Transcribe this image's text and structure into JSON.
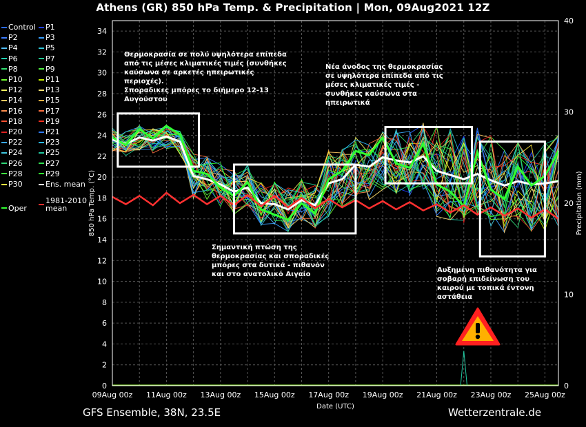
{
  "title": "Athens  (GR)  850 hPa Temp. & Precipitation | Mon, 09Aug2021 12Z",
  "footer": {
    "left": "GFS Ensemble, 38N, 23.5E",
    "right": "Wetterzentrale.de"
  },
  "legend": [
    {
      "label": "Control",
      "color": "#2c6bff"
    },
    {
      "label": "P1",
      "color": "#2040ff"
    },
    {
      "label": "P2",
      "color": "#3d7dff"
    },
    {
      "label": "P3",
      "color": "#3aa0ff"
    },
    {
      "label": "P4",
      "color": "#52c0ff"
    },
    {
      "label": "P5",
      "color": "#30c8d8"
    },
    {
      "label": "P6",
      "color": "#20d0b0"
    },
    {
      "label": "P7",
      "color": "#20c890"
    },
    {
      "label": "P8",
      "color": "#30e070"
    },
    {
      "label": "P9",
      "color": "#50f040"
    },
    {
      "label": "P10",
      "color": "#70ff30"
    },
    {
      "label": "P11",
      "color": "#c8f000"
    },
    {
      "label": "P12",
      "color": "#f0f060"
    },
    {
      "label": "P13",
      "color": "#ffe070"
    },
    {
      "label": "P14",
      "color": "#ffc860"
    },
    {
      "label": "P15",
      "color": "#ffb040"
    },
    {
      "label": "P16",
      "color": "#ff9050"
    },
    {
      "label": "P17",
      "color": "#ff7040"
    },
    {
      "label": "P18",
      "color": "#ff5030"
    },
    {
      "label": "P19",
      "color": "#ff3020"
    },
    {
      "label": "P20",
      "color": "#e02020"
    },
    {
      "label": "P21",
      "color": "#2e7bff"
    },
    {
      "label": "P22",
      "color": "#3aa8ff"
    },
    {
      "label": "P23",
      "color": "#2ab8ff"
    },
    {
      "label": "P24",
      "color": "#40c8e0"
    },
    {
      "label": "P25",
      "color": "#20c8a0"
    },
    {
      "label": "P26",
      "color": "#30d878"
    },
    {
      "label": "P27",
      "color": "#30e050"
    },
    {
      "label": "P28",
      "color": "#40f040"
    },
    {
      "label": "P29",
      "color": "#30ff30"
    },
    {
      "label": "P30",
      "color": "#ffe840"
    },
    {
      "label": "Ens. mean",
      "color": "#ffffff"
    },
    {
      "label": "Oper",
      "color": "#30ff30"
    },
    {
      "label": "1981-2010\nmean",
      "color": "#ff3030"
    }
  ],
  "annotations": [
    {
      "text": "Θερμοκρασία σε πολύ υψηλότερα επίπεδα\nαπό τις μέσες κλιματικές τιμές (συνθήκες\nκαύσωνα σε αρκετές ηπειρωτικές\nπεριοχές).\nΣποραδικες μπόρες το διήμερο 12-13\nΑυγούστου"
    },
    {
      "text": "Σημαντική πτώση της\nθερμοκρασίας και σποραδικές\nμπόρες στα δυτικά - πιθανόν\nκαι στο ανατολικό Αιγαίο"
    },
    {
      "text": "Νέα άνοδος της θερμοκρασίας\nσε υψηλότερα επίπεδα από τις\nμέσες κλιματικές τιμές -\nσυνθήκες καύσωνα στα\nηπειρωτικά"
    },
    {
      "text": "Αυξημένη πιθανότητα για\nσοβαρή επιδείνωση του\nκαιρού με τοπικά έντονη\nαστάθεια"
    }
  ],
  "chart_data": {
    "type": "line",
    "xlabel": "Date (UTC)",
    "ylabel": "850 hPa Temp. (°C)",
    "ylabel_right": "Precipitation (mm)",
    "ylim": [
      0,
      35
    ],
    "ylim_right": [
      0,
      40
    ],
    "x_range": [
      "09Aug 00z",
      "25Aug 12z"
    ],
    "x_tick_labels": [
      "09Aug 00z",
      "11Aug 00z",
      "13Aug 00z",
      "15Aug 00z",
      "17Aug 00z",
      "19Aug 00z",
      "21Aug 00z",
      "23Aug 00z",
      "25Aug 00z"
    ],
    "y_ticks": [
      0,
      2,
      4,
      6,
      8,
      10,
      12,
      14,
      16,
      18,
      20,
      22,
      24,
      26,
      28,
      30,
      32,
      34
    ],
    "y_right_ticks": [
      0,
      10,
      20,
      30,
      40
    ],
    "grid": true,
    "x_days": [
      0,
      0.5,
      1,
      1.5,
      2,
      2.5,
      3,
      3.5,
      4,
      4.5,
      5,
      5.5,
      6,
      6.5,
      7,
      7.5,
      8,
      8.5,
      9,
      9.5,
      10,
      10.5,
      11,
      11.5,
      12,
      12.5,
      13,
      13.5,
      14,
      14.5,
      15,
      15.5,
      16,
      16.5
    ],
    "series": [
      {
        "name": "Ens. mean",
        "values": [
          23.6,
          23.2,
          23.8,
          23.5,
          23.9,
          23.4,
          20.1,
          19.8,
          19.3,
          18.6,
          19.0,
          17.5,
          17.4,
          16.9,
          17.8,
          17.3,
          19.4,
          19.8,
          21.2,
          21.0,
          21.9,
          21.6,
          21.4,
          22.0,
          20.6,
          20.2,
          19.8,
          20.3,
          19.7,
          19.2,
          19.6,
          19.3,
          19.4,
          19.6
        ]
      },
      {
        "name": "Oper",
        "values": [
          23.8,
          23.1,
          24.6,
          23.7,
          24.9,
          24.1,
          20.6,
          20.3,
          19.0,
          18.2,
          19.5,
          16.9,
          16.4,
          15.9,
          17.5,
          16.5,
          19.8,
          20.6,
          22.5,
          22.1,
          23.8,
          21.3,
          20.9,
          23.2,
          19.3,
          18.6,
          17.2,
          22.4,
          18.8,
          17.9,
          21.0,
          19.2,
          20.1,
          22.5
        ]
      },
      {
        "name": "1981-2010 mean",
        "values": [
          18.1,
          17.4,
          18.2,
          17.3,
          18.5,
          17.5,
          18.3,
          17.4,
          18.2,
          17.3,
          18.3,
          17.2,
          18.2,
          17.1,
          18.0,
          17.0,
          17.9,
          17.1,
          17.8,
          17.0,
          17.7,
          16.9,
          17.6,
          16.8,
          17.4,
          16.6,
          17.3,
          16.4,
          17.1,
          16.3,
          17.0,
          16.1,
          16.9,
          16.0
        ]
      }
    ],
    "precipitation_series": [
      {
        "name": "P27",
        "x_days": [
          13.0
        ],
        "values": [
          3.8
        ]
      }
    ]
  }
}
